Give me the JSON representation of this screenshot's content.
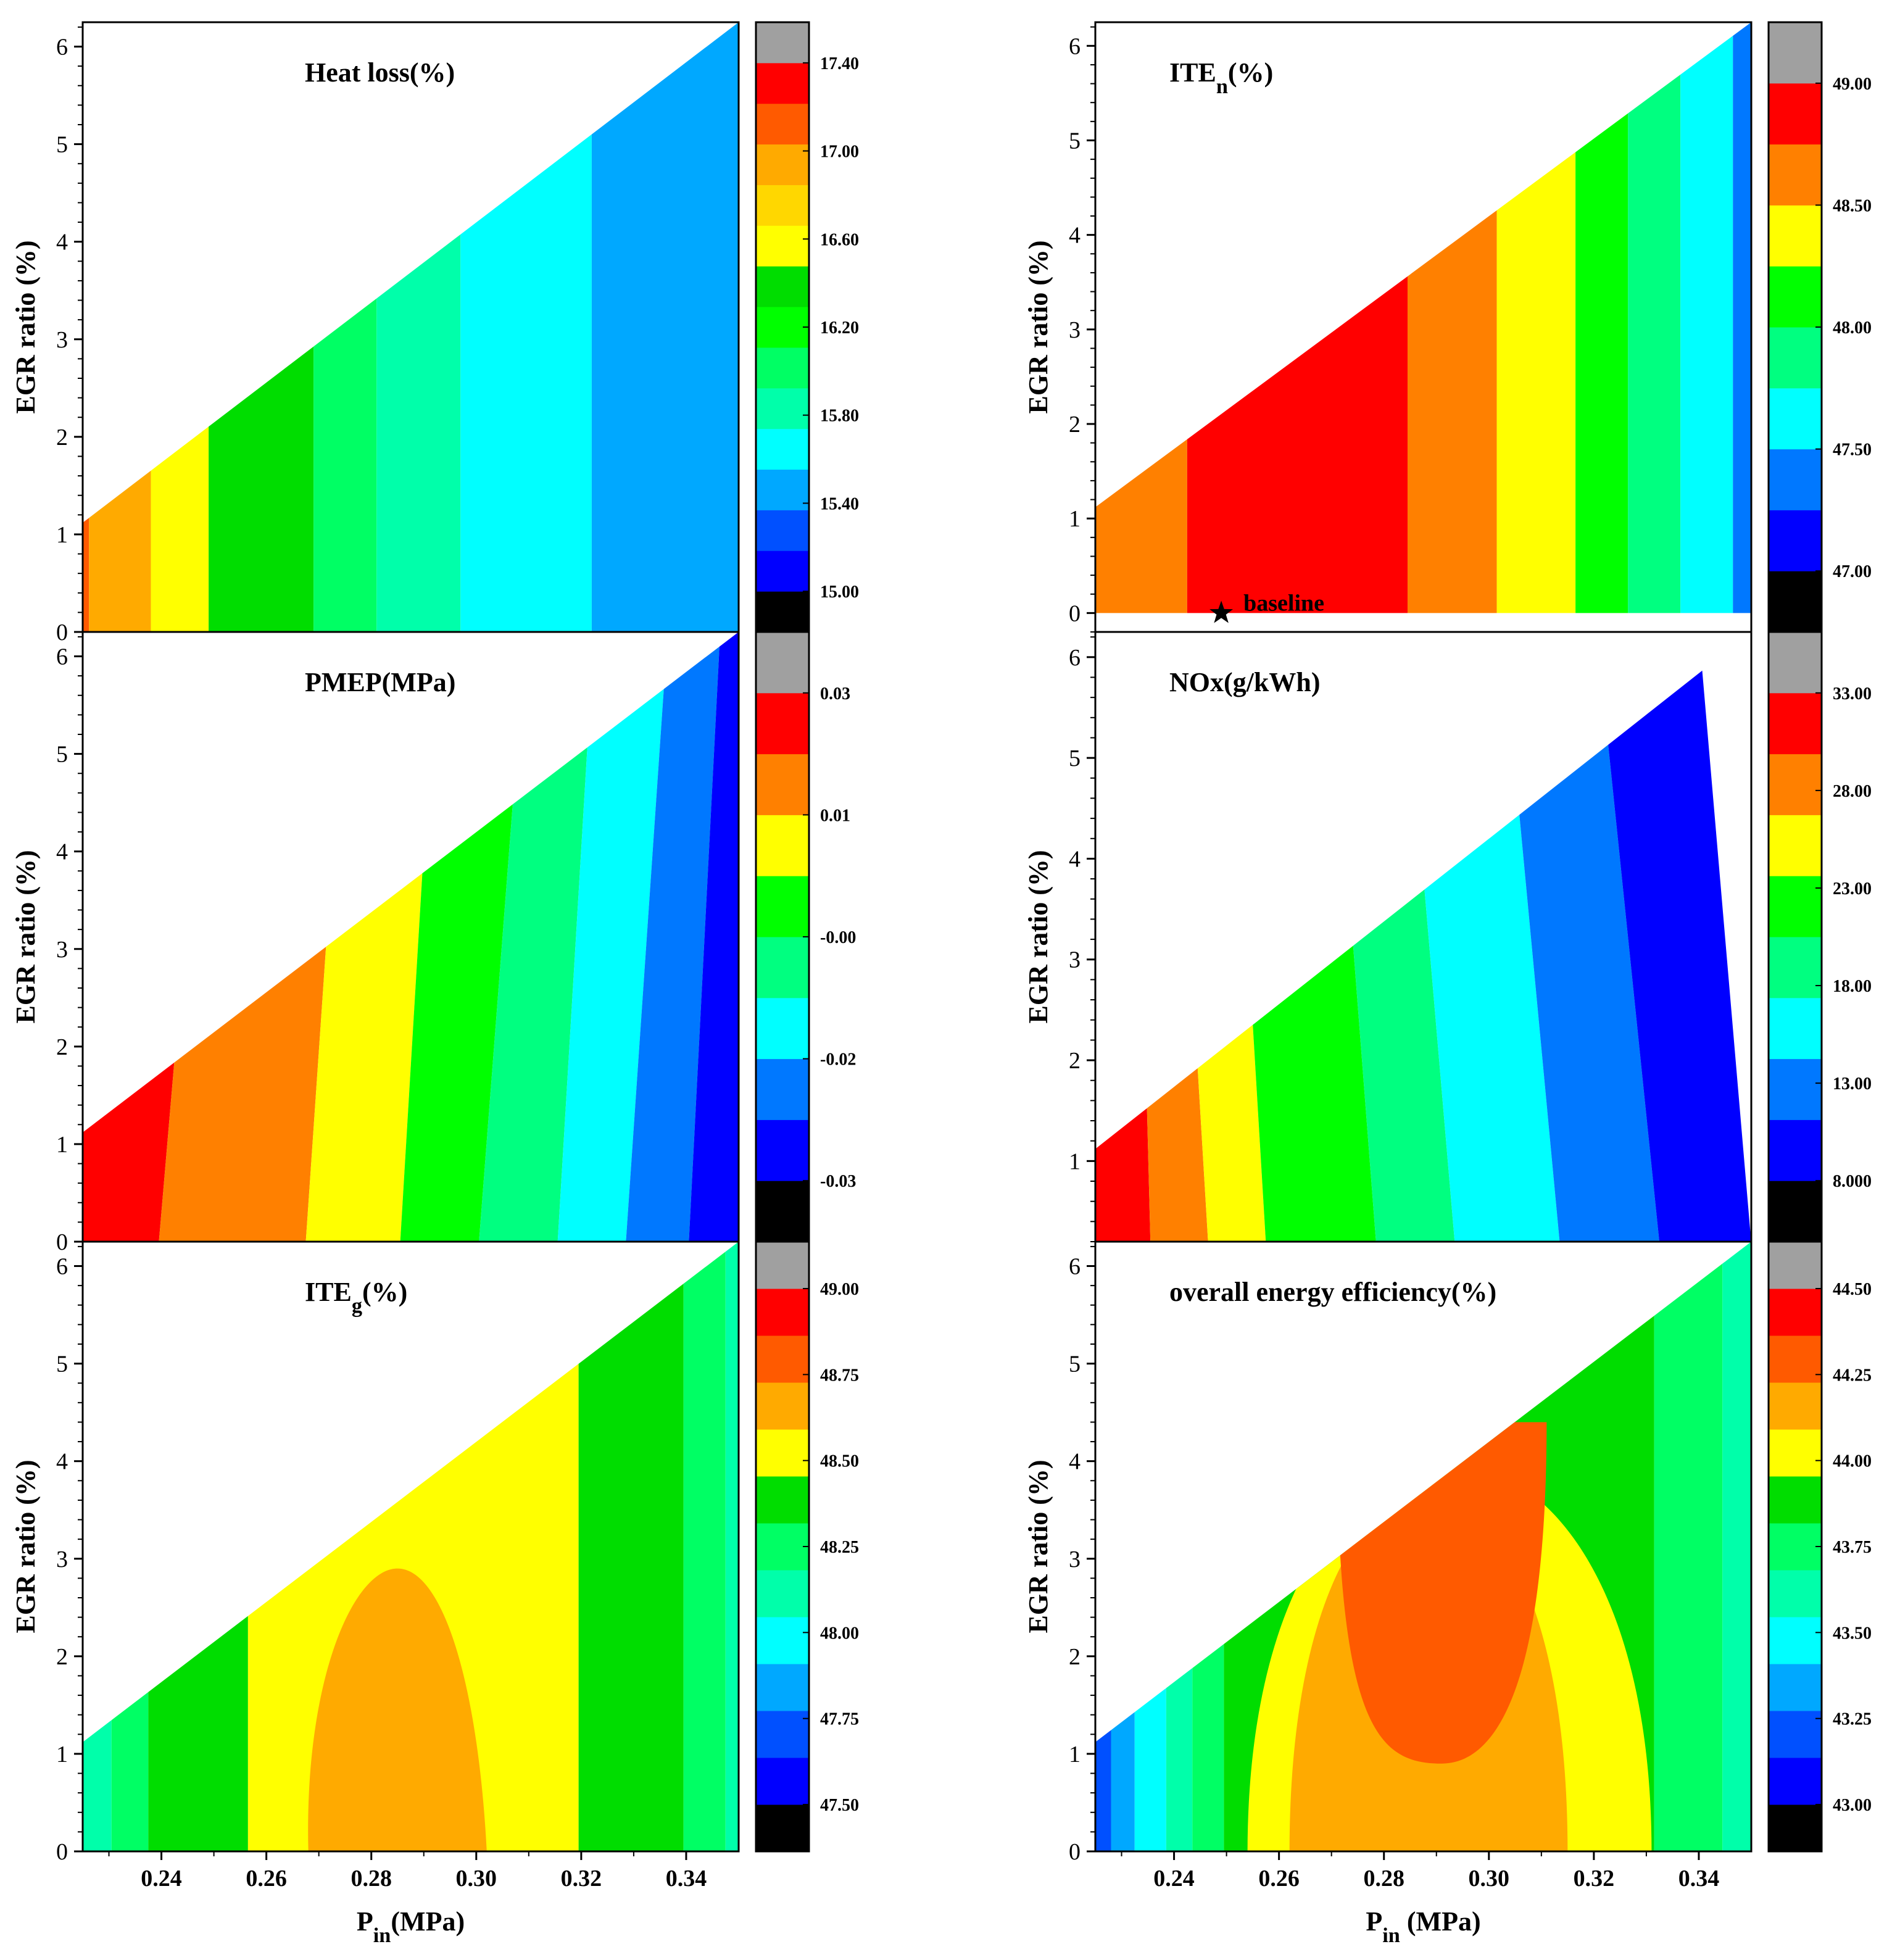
{
  "figure": {
    "y_axis_label": "EGR ratio (%)",
    "x_label_left": {
      "main": "P",
      "sub": "in",
      "rest": "(MPa)"
    },
    "x_label_right": {
      "main": "P",
      "sub": "in",
      "rest": " (MPa)"
    },
    "baseline_label": "baseline"
  },
  "chart_data": [
    {
      "id": "heat-loss",
      "type": "heatmap",
      "title": "Heat loss(%)",
      "xlim": [
        0.225,
        0.35
      ],
      "ylim": [
        0,
        6.25
      ],
      "x_ticks": [
        "0.24",
        "0.26",
        "0.28",
        "0.30",
        "0.32",
        "0.34"
      ],
      "y_ticks": [
        "0",
        "1",
        "2",
        "3",
        "4",
        "5",
        "6"
      ],
      "feasible_region": {
        "upper_boundary": [
          [
            0.225,
            1.12
          ],
          [
            0.35,
            6.25
          ]
        ]
      },
      "colorbar_ticks": [
        "17.40",
        "17.00",
        "16.60",
        "16.20",
        "15.80",
        "15.40",
        "15.00"
      ],
      "colorbar_colors": [
        "#000000",
        "#0000ff",
        "#0050ff",
        "#00a8ff",
        "#00ffff",
        "#00ffaa",
        "#00ff64",
        "#00ff00",
        "#00dd00",
        "#ffff00",
        "#ffd700",
        "#ffaa00",
        "#ff5a00",
        "#ff0000",
        "#a0a0a0"
      ],
      "contour_bands": [
        {
          "x_start": 0.225,
          "x_end": 0.2262,
          "color": "#ff5a00"
        },
        {
          "x_start": 0.2262,
          "x_end": 0.238,
          "color": "#ffaa00"
        },
        {
          "x_start": 0.238,
          "x_end": 0.249,
          "color": "#ffff00"
        },
        {
          "x_start": 0.249,
          "x_end": 0.269,
          "color": "#00dd00"
        },
        {
          "x_start": 0.269,
          "x_end": 0.281,
          "color": "#00ff64"
        },
        {
          "x_start": 0.281,
          "x_end": 0.297,
          "color": "#00ffaa"
        },
        {
          "x_start": 0.297,
          "x_end": 0.322,
          "color": "#00ffff"
        },
        {
          "x_start": 0.322,
          "x_end": 0.35,
          "color": "#00a8ff"
        }
      ]
    },
    {
      "id": "pmep",
      "type": "heatmap",
      "title": "PMEP(MPa)",
      "xlim": [
        0.225,
        0.35
      ],
      "ylim": [
        0,
        6.25
      ],
      "x_ticks": [
        "0.24",
        "0.26",
        "0.28",
        "0.30",
        "0.32",
        "0.34"
      ],
      "y_ticks": [
        "0",
        "1",
        "2",
        "3",
        "4",
        "5",
        "6"
      ],
      "feasible_region": {
        "upper_boundary": [
          [
            0.225,
            1.12
          ],
          [
            0.35,
            6.25
          ]
        ]
      },
      "colorbar_ticks": [
        "0.03",
        "0.01",
        "-0.00",
        "-0.02",
        "-0.03"
      ],
      "colorbar_colors": [
        "#000000",
        "#0000ff",
        "#0078ff",
        "#00ffff",
        "#00ff80",
        "#00ff00",
        "#ffff00",
        "#ff8000",
        "#ff0000",
        "#a0a0a0"
      ],
      "contour_bands": [
        {
          "x_bottom": 0.225,
          "x_top": 0.225,
          "x_end_bottom": 0.2395,
          "x_end_top": 0.2495,
          "color": "#ff0000"
        },
        {
          "x_end_bottom": 0.2675,
          "x_end_top": 0.2755,
          "color": "#ff8000"
        },
        {
          "x_end_bottom": 0.2855,
          "x_end_top": 0.2925,
          "color": "#ffff00"
        },
        {
          "x_end_bottom": 0.3005,
          "x_end_top": 0.3095,
          "color": "#00ff00"
        },
        {
          "x_end_bottom": 0.3155,
          "x_end_top": 0.3225,
          "color": "#00ff80"
        },
        {
          "x_end_bottom": 0.3285,
          "x_end_top": 0.3365,
          "color": "#00ffff"
        },
        {
          "x_end_bottom": 0.3405,
          "x_end_top": 0.3465,
          "color": "#0078ff"
        },
        {
          "x_end_bottom": 0.35,
          "x_end_top": 0.35,
          "color": "#0000ff"
        }
      ]
    },
    {
      "id": "ite-g",
      "type": "heatmap",
      "title": {
        "main": "ITE",
        "sub": "g",
        "rest": "(%)"
      },
      "xlim": [
        0.225,
        0.35
      ],
      "ylim": [
        0,
        6.25
      ],
      "x_ticks": [
        "0.24",
        "0.26",
        "0.28",
        "0.30",
        "0.32",
        "0.34"
      ],
      "y_ticks": [
        "0",
        "1",
        "2",
        "3",
        "4",
        "5",
        "6"
      ],
      "feasible_region": {
        "upper_boundary": [
          [
            0.225,
            1.12
          ],
          [
            0.35,
            6.25
          ]
        ]
      },
      "colorbar_ticks": [
        "49.00",
        "48.75",
        "48.50",
        "48.25",
        "48.00",
        "47.75",
        "47.50"
      ],
      "colorbar_colors": [
        "#000000",
        "#0000ff",
        "#0050ff",
        "#00a8ff",
        "#00ffff",
        "#00ffaa",
        "#00ff64",
        "#00dd00",
        "#ffff00",
        "#ffaa00",
        "#ff5a00",
        "#ff0000",
        "#a0a0a0"
      ],
      "contour_bands": [
        {
          "x_start": 0.225,
          "x_end": 0.2305,
          "color": "#00ffaa"
        },
        {
          "x_start": 0.2305,
          "x_end": 0.2375,
          "color": "#00ff64"
        },
        {
          "x_start": 0.2375,
          "x_end": 0.2565,
          "color": "#00dd00"
        },
        {
          "x_start": 0.2565,
          "x_end": 0.3195,
          "color": "#ffff00"
        },
        {
          "x_start": 0.3195,
          "x_end": 0.3395,
          "color": "#00dd00"
        },
        {
          "x_start": 0.3395,
          "x_end": 0.3475,
          "color": "#00ff64"
        },
        {
          "x_start": 0.3475,
          "x_end": 0.35,
          "color": "#00ffaa"
        }
      ],
      "island": {
        "value_band": "48.75",
        "color": "#ffaa00",
        "x_range": [
          0.268,
          0.302
        ],
        "y_range": [
          0,
          2.9
        ]
      }
    },
    {
      "id": "ite-n",
      "type": "heatmap",
      "title": {
        "main": "ITE",
        "sub": "n",
        "rest": "(%)"
      },
      "xlim": [
        0.225,
        0.35
      ],
      "ylim": [
        -0.2,
        6.25
      ],
      "x_ticks": [
        "0.24",
        "0.26",
        "0.28",
        "0.30",
        "0.32",
        "0.34"
      ],
      "y_ticks": [
        "0",
        "1",
        "2",
        "3",
        "4",
        "5",
        "6"
      ],
      "feasible_region": {
        "upper_boundary": [
          [
            0.225,
            1.12
          ],
          [
            0.35,
            6.25
          ]
        ],
        "lower_boundary": 0
      },
      "colorbar_ticks": [
        "49.00",
        "48.50",
        "48.00",
        "47.50",
        "47.00"
      ],
      "colorbar_colors": [
        "#000000",
        "#0000ff",
        "#0078ff",
        "#00ffff",
        "#00ff80",
        "#00ff00",
        "#ffff00",
        "#ff8000",
        "#ff0000",
        "#a0a0a0"
      ],
      "contour_bands": [
        {
          "x_start": 0.225,
          "x_end": 0.2425,
          "color": "#ff8000"
        },
        {
          "x_start": 0.2425,
          "x_end": 0.2845,
          "color": "#ff0000"
        },
        {
          "x_start": 0.2845,
          "x_end": 0.3015,
          "color": "#ff8000"
        },
        {
          "x_start": 0.3015,
          "x_end": 0.3165,
          "color": "#ffff00"
        },
        {
          "x_start": 0.3165,
          "x_end": 0.3265,
          "color": "#00ff00"
        },
        {
          "x_start": 0.3265,
          "x_end": 0.3365,
          "color": "#00ff80"
        },
        {
          "x_start": 0.3365,
          "x_end": 0.3465,
          "color": "#00ffff"
        },
        {
          "x_start": 0.3465,
          "x_end": 0.35,
          "color": "#0078ff"
        }
      ],
      "baseline_point": {
        "x": 0.249,
        "y": 0.0,
        "label": "baseline"
      }
    },
    {
      "id": "nox",
      "type": "heatmap",
      "title": "NOx(g/kWh)",
      "xlim": [
        0.225,
        0.35
      ],
      "ylim": [
        0.2,
        6.25
      ],
      "x_ticks": [
        "0.24",
        "0.26",
        "0.28",
        "0.30",
        "0.32",
        "0.34"
      ],
      "y_ticks": [
        "1",
        "2",
        "3",
        "4",
        "5",
        "6"
      ],
      "feasible_region": {
        "upper_boundary": [
          [
            0.225,
            1.12
          ],
          [
            0.35,
            6.25
          ]
        ]
      },
      "colorbar_ticks": [
        "33.00",
        "28.00",
        "23.00",
        "18.00",
        "13.00",
        "8.000"
      ],
      "colorbar_colors": [
        "#000000",
        "#0000ff",
        "#0078ff",
        "#00ffff",
        "#00ff80",
        "#00ff00",
        "#ffff00",
        "#ff8000",
        "#ff0000",
        "#a0a0a0"
      ],
      "contour_bands": [
        {
          "x_end_bottom": 0.2355,
          "x_end_top": 0.2325,
          "color": "#ff0000"
        },
        {
          "x_end_bottom": 0.2465,
          "x_end_top": 0.2395,
          "color": "#ff8000"
        },
        {
          "x_end_bottom": 0.2575,
          "x_end_top": 0.2505,
          "color": "#ffff00"
        },
        {
          "x_end_bottom": 0.2785,
          "x_end_top": 0.2695,
          "color": "#00ff00"
        },
        {
          "x_end_bottom": 0.2935,
          "x_end_top": 0.2835,
          "color": "#00ff80"
        },
        {
          "x_end_bottom": 0.3135,
          "x_end_top": 0.3025,
          "color": "#00ffff"
        },
        {
          "x_end_bottom": 0.3325,
          "x_end_top": 0.3205,
          "color": "#0078ff"
        },
        {
          "x_end_bottom": 0.35,
          "x_end_top": 0.34,
          "color": "#0000ff"
        }
      ]
    },
    {
      "id": "overall-energy-efficiency",
      "type": "heatmap",
      "title": "overall energy efficiency(%)",
      "xlim": [
        0.225,
        0.35
      ],
      "ylim": [
        0,
        6.25
      ],
      "x_ticks": [
        "0.24",
        "0.26",
        "0.28",
        "0.30",
        "0.32",
        "0.34"
      ],
      "y_ticks": [
        "0",
        "1",
        "2",
        "3",
        "4",
        "5",
        "6"
      ],
      "feasible_region": {
        "upper_boundary": [
          [
            0.225,
            1.12
          ],
          [
            0.35,
            6.25
          ]
        ]
      },
      "colorbar_ticks": [
        "44.50",
        "44.25",
        "44.00",
        "43.75",
        "43.50",
        "43.25",
        "43.00"
      ],
      "colorbar_colors": [
        "#000000",
        "#0000ff",
        "#0050ff",
        "#00a8ff",
        "#00ffff",
        "#00ffaa",
        "#00ff64",
        "#00dd00",
        "#ffff00",
        "#ffaa00",
        "#ff5a00",
        "#ff0000",
        "#a0a0a0"
      ],
      "contour_bands": [
        {
          "x_start": 0.225,
          "x_end": 0.228,
          "color": "#0050ff"
        },
        {
          "x_start": 0.228,
          "x_end": 0.2325,
          "color": "#00a8ff"
        },
        {
          "x_start": 0.2325,
          "x_end": 0.2385,
          "color": "#00ffff"
        },
        {
          "x_start": 0.2385,
          "x_end": 0.2435,
          "color": "#00ffaa"
        },
        {
          "x_start": 0.2435,
          "x_end": 0.2495,
          "color": "#00ff64"
        },
        {
          "x_start": 0.2495,
          "x_end": 0.3315,
          "color": "#00dd00"
        },
        {
          "x_start": 0.3315,
          "x_end": 0.3445,
          "color": "#00ff64"
        },
        {
          "x_start": 0.3445,
          "x_end": 0.35,
          "color": "#00ffaa"
        }
      ],
      "nested_regions": [
        {
          "value_band": "44.00",
          "color": "#ffff00",
          "x_range": [
            0.254,
            0.331
          ],
          "y_range": [
            0,
            5.3
          ]
        },
        {
          "value_band": "44.25",
          "color": "#ffaa00",
          "x_range": [
            0.262,
            0.315
          ],
          "y_range": [
            0,
            4.9
          ]
        },
        {
          "value_band": "44.50",
          "color": "#ff5a00",
          "x_range": [
            0.271,
            0.311
          ],
          "y_range": [
            0.9,
            4.4
          ]
        }
      ]
    }
  ]
}
